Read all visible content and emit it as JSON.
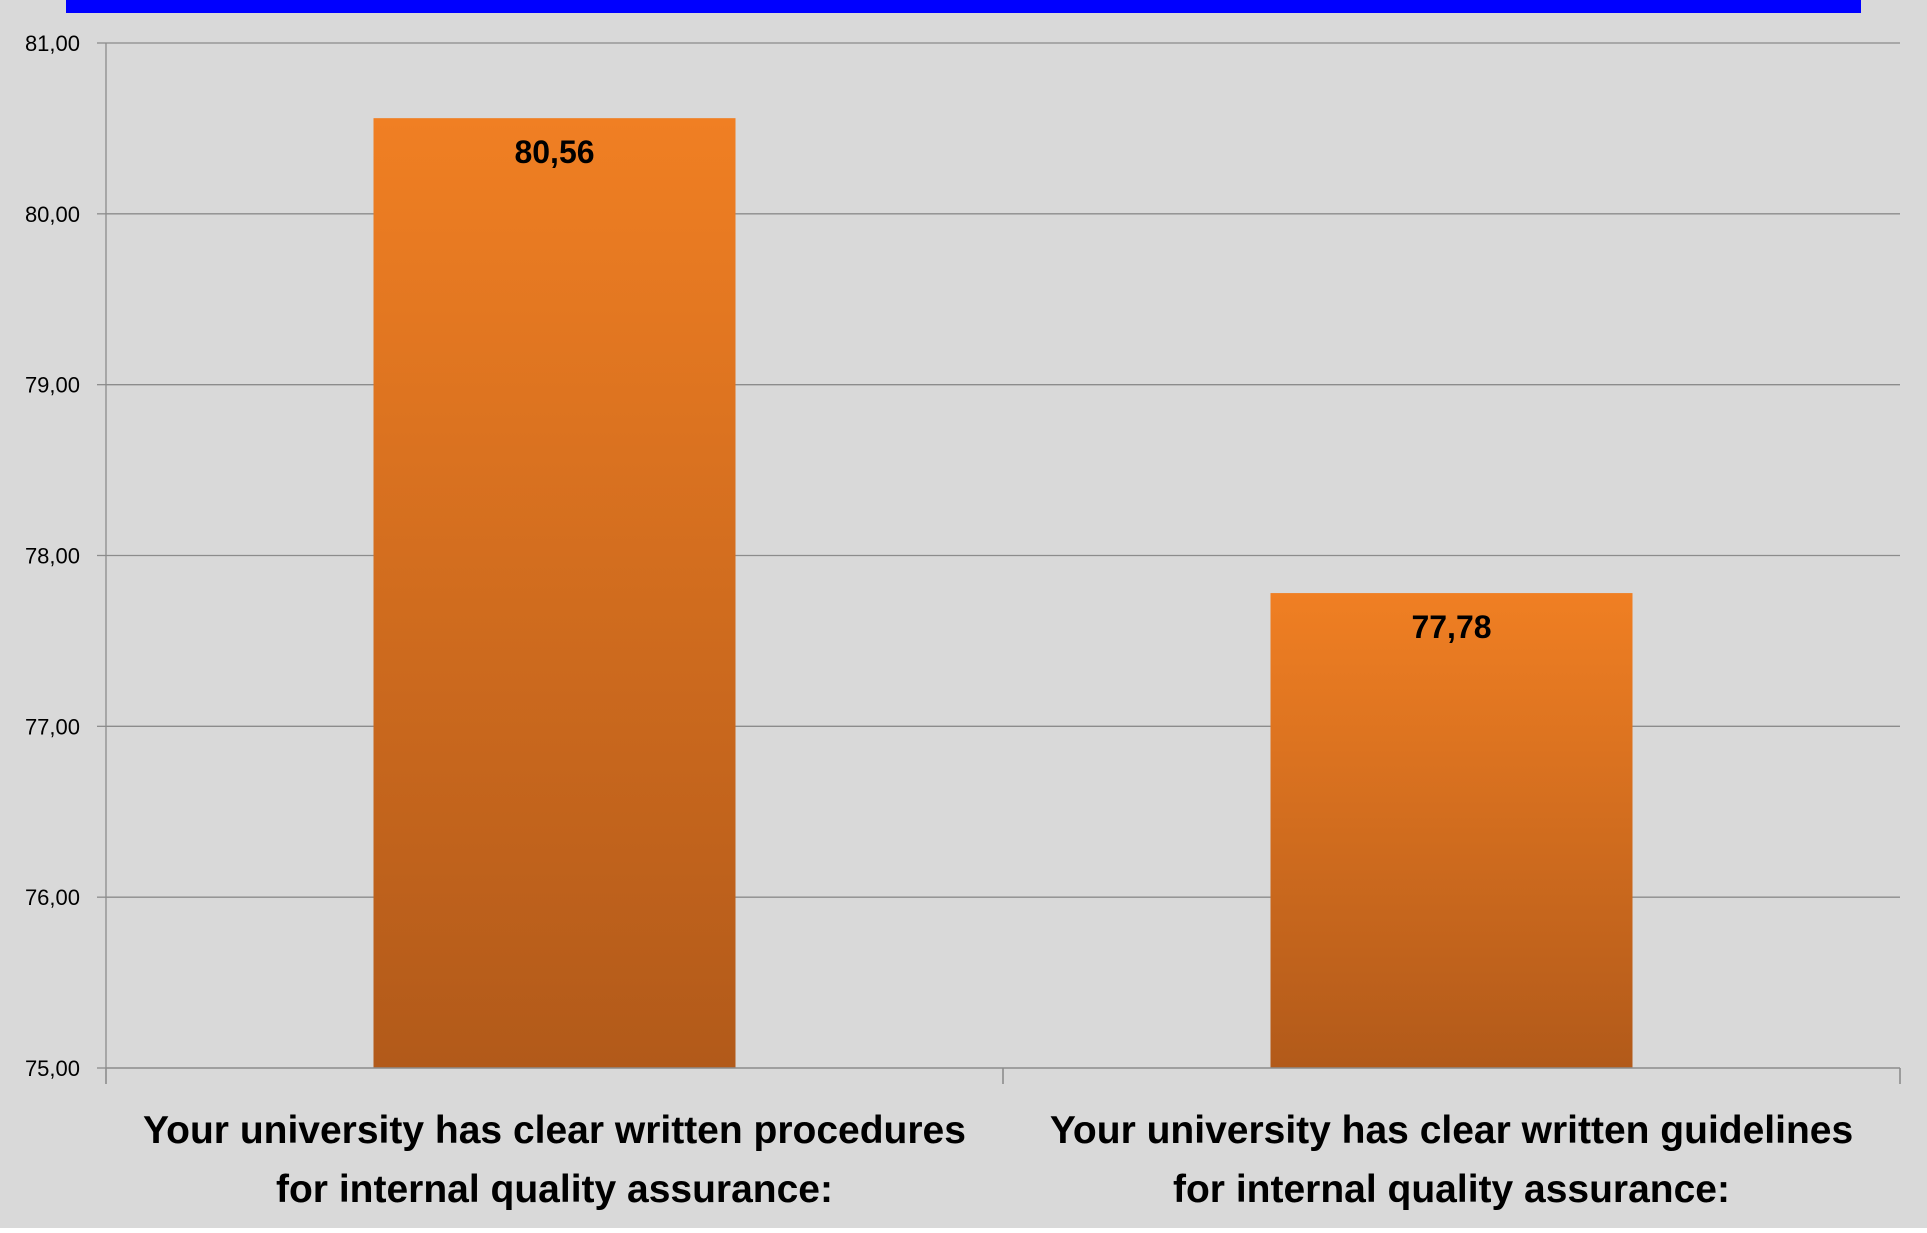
{
  "colors": {
    "panel_background": "#d9d9d9",
    "top_bar": "#0000ff",
    "bar_top": "#f07f23",
    "bar_bottom": "#b25a1a",
    "gridline": "#8c8c8c",
    "text": "#000000"
  },
  "chart_data": {
    "type": "bar",
    "title": "",
    "xlabel": "",
    "ylabel": "",
    "ylim": [
      75,
      81
    ],
    "yticks": [
      "75,00",
      "76,00",
      "77,00",
      "78,00",
      "79,00",
      "80,00",
      "81,00"
    ],
    "grid": true,
    "categories": [
      [
        "Your university has clear written procedures",
        "for internal quality assurance:"
      ],
      [
        "Your university has clear written guidelines",
        "for internal quality assurance:"
      ]
    ],
    "values": [
      80.56,
      77.78
    ],
    "value_labels": [
      "80,56",
      "77,78"
    ]
  }
}
